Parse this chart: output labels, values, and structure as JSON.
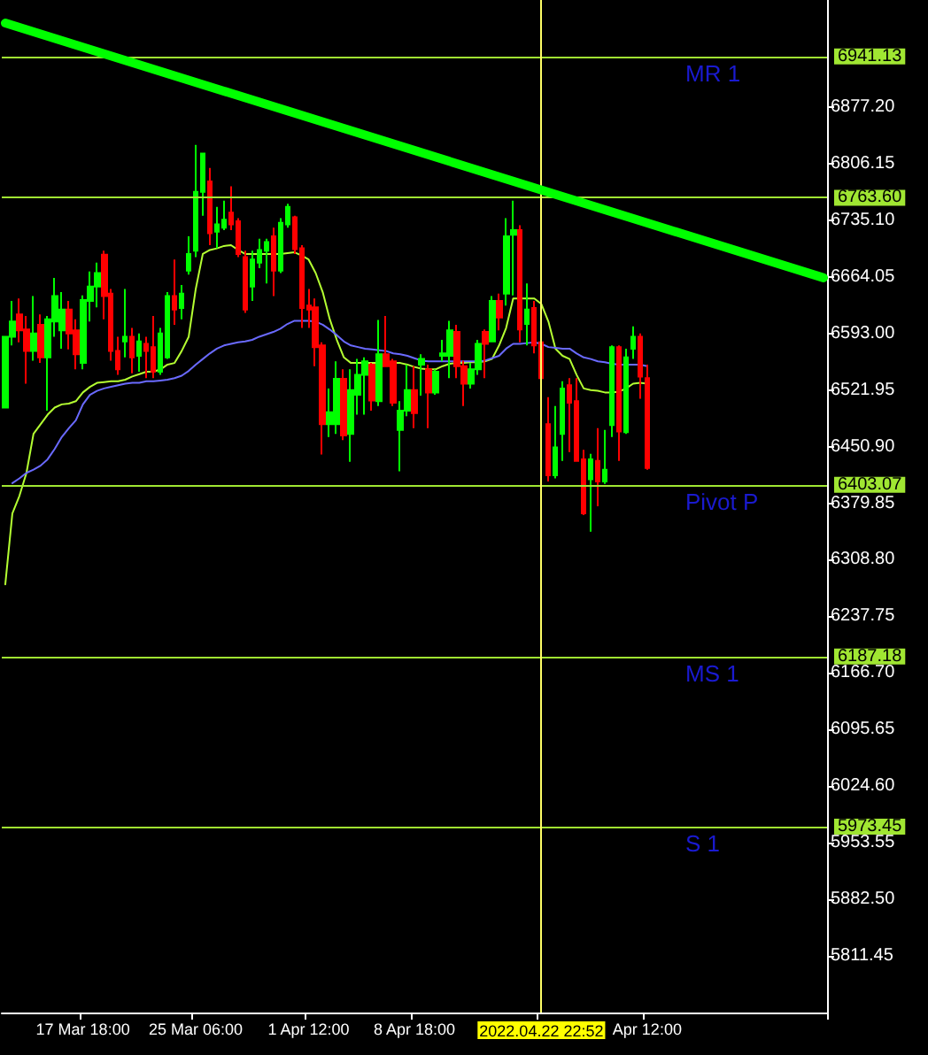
{
  "chart_data": {
    "type": "candlestick",
    "categories": [
      null,
      null,
      null,
      null,
      null,
      null,
      null,
      null,
      null,
      null,
      null,
      "17 Mar 18:00",
      null,
      null,
      null,
      null,
      null,
      null,
      null,
      null,
      null,
      null,
      null,
      null,
      null,
      null,
      null,
      "25 Mar 06:00",
      null,
      null,
      null,
      null,
      null,
      null,
      null,
      null,
      null,
      null,
      null,
      null,
      null,
      null,
      null,
      "1 Apr 12:00",
      null,
      null,
      null,
      null,
      null,
      null,
      null,
      null,
      null,
      null,
      null,
      null,
      null,
      null,
      "8 Apr 18:00",
      null,
      null,
      null,
      null,
      null,
      null,
      null,
      null,
      null,
      null,
      null,
      null,
      null,
      null,
      null,
      null,
      null,
      "2022.04.22 22:52",
      null,
      null,
      null,
      null,
      null,
      null,
      null,
      null,
      null,
      null,
      null,
      null,
      null,
      null,
      "Apr 12:00",
      null,
      null,
      null,
      null,
      null,
      null,
      null,
      null,
      null,
      null,
      null,
      null,
      null,
      null,
      null,
      null,
      null,
      null,
      null,
      null,
      null,
      null,
      null,
      null,
      null
    ],
    "ohlc": [
      [
        6500,
        6589,
        6500,
        6589
      ],
      [
        6589,
        6634,
        6578,
        6608
      ],
      [
        6617,
        6637,
        6582,
        6597
      ],
      [
        6598,
        6615,
        6530,
        6571
      ],
      [
        6571,
        6640,
        6559,
        6593
      ],
      [
        6604,
        6617,
        6556,
        6563
      ],
      [
        6563,
        6615,
        6496,
        6611
      ],
      [
        6608,
        6663,
        6589,
        6640
      ],
      [
        6597,
        6645,
        6574,
        6623
      ],
      [
        6623,
        6634,
        6573,
        6593
      ],
      [
        6597,
        6611,
        6548,
        6567
      ],
      [
        6556,
        6641,
        6548,
        6635
      ],
      [
        6634,
        6671,
        6608,
        6652
      ],
      [
        6652,
        6682,
        6626,
        6669
      ],
      [
        6692,
        6697,
        6611,
        6640
      ],
      [
        6643,
        6649,
        6559,
        6571
      ],
      [
        6571,
        6589,
        6541,
        6548
      ],
      [
        6583,
        6649,
        6563,
        6589
      ],
      [
        6589,
        6600,
        6543,
        6563
      ],
      [
        6565,
        6593,
        6545,
        6583
      ],
      [
        6580,
        6589,
        6537,
        6571
      ],
      [
        6576,
        6615,
        6537,
        6545
      ],
      [
        6545,
        6600,
        6541,
        6593
      ],
      [
        6563,
        6645,
        6561,
        6640
      ],
      [
        6640,
        6686,
        6604,
        6623
      ],
      [
        6625,
        6654,
        6611,
        6643
      ],
      [
        6672,
        6715,
        6667,
        6693
      ],
      [
        6697,
        6830,
        6689,
        6771
      ],
      [
        6771,
        6819,
        6741,
        6819
      ],
      [
        6784,
        6801,
        6704,
        6719
      ],
      [
        6721,
        6752,
        6700,
        6730
      ],
      [
        6726,
        6760,
        6723,
        6736
      ],
      [
        6745,
        6778,
        6723,
        6730
      ],
      [
        6734,
        6738,
        6689,
        6693
      ],
      [
        6689,
        6697,
        6619,
        6623
      ],
      [
        6652,
        6697,
        6634,
        6686
      ],
      [
        6682,
        6712,
        6675,
        6698
      ],
      [
        6697,
        6712,
        6656,
        6708
      ],
      [
        6715,
        6726,
        6640,
        6672
      ],
      [
        6672,
        6738,
        6669,
        6732
      ],
      [
        6730,
        6756,
        6726,
        6752
      ],
      [
        6739,
        6741,
        6693,
        6699
      ],
      [
        6700,
        6704,
        6600,
        6625
      ],
      [
        6628,
        6649,
        6600,
        6623
      ],
      [
        6626,
        6637,
        6552,
        6576
      ],
      [
        6578,
        6582,
        6441,
        6479
      ],
      [
        6479,
        6524,
        6463,
        6494
      ],
      [
        6479,
        6558,
        6467,
        6536
      ],
      [
        6536,
        6548,
        6459,
        6465
      ],
      [
        6467,
        6548,
        6432,
        6522
      ],
      [
        6516,
        6561,
        6491,
        6541
      ],
      [
        6541,
        6563,
        6491,
        6558
      ],
      [
        6554,
        6556,
        6496,
        6509
      ],
      [
        6508,
        6610,
        6502,
        6567
      ],
      [
        6567,
        6615,
        6552,
        6552
      ],
      [
        6558,
        6561,
        6502,
        6506
      ],
      [
        6472,
        6508,
        6420,
        6496
      ],
      [
        6496,
        6554,
        6489,
        6522
      ],
      [
        6522,
        6552,
        6474,
        6493
      ],
      [
        6554,
        6567,
        6515,
        6561
      ],
      [
        6548,
        6554,
        6474,
        6519
      ],
      [
        6519,
        6548,
        6516,
        6545
      ],
      [
        6565,
        6585,
        6558,
        6568
      ],
      [
        6565,
        6609,
        6537,
        6597
      ],
      [
        6595,
        6604,
        6537,
        6552
      ],
      [
        6552,
        6559,
        6502,
        6530
      ],
      [
        6530,
        6556,
        6524,
        6548
      ],
      [
        6548,
        6585,
        6541,
        6580
      ],
      [
        6595,
        6598,
        6537,
        6580
      ],
      [
        6583,
        6640,
        6582,
        6634
      ],
      [
        6634,
        6643,
        6597,
        6613
      ],
      [
        6643,
        6738,
        6628,
        6715
      ],
      [
        6717,
        6760,
        6641,
        6723
      ],
      [
        6723,
        6729,
        6582,
        6598
      ],
      [
        6605,
        6656,
        6578,
        6623
      ],
      [
        6625,
        6634,
        6568,
        6578
      ],
      [
        6582,
        6585,
        6537,
        6537
      ],
      [
        6479,
        6513,
        6407,
        6415
      ],
      [
        6415,
        6502,
        6411,
        6450
      ],
      [
        6467,
        6533,
        6433,
        6524
      ],
      [
        6528,
        6537,
        6444,
        6506
      ],
      [
        6508,
        6537,
        6433,
        6433
      ],
      [
        6435,
        6447,
        6365,
        6367
      ],
      [
        6410,
        6442,
        6344,
        6435
      ],
      [
        6433,
        6474,
        6376,
        6407
      ],
      [
        6407,
        6472,
        6404,
        6422
      ],
      [
        6478,
        6578,
        6463,
        6576
      ],
      [
        6576,
        6578,
        6433,
        6470
      ],
      [
        6469,
        6574,
        6467,
        6563
      ],
      [
        6574,
        6602,
        6561,
        6589
      ],
      [
        6589,
        6593,
        6511,
        6539
      ],
      [
        6537,
        6554,
        6422,
        6424
      ],
      null,
      null,
      null,
      null,
      null,
      null,
      null,
      null,
      null,
      null,
      null,
      null,
      null,
      null,
      null,
      null,
      null,
      null,
      null,
      null,
      null,
      null,
      null,
      null,
      null
    ],
    "colors": [
      "#00ff00",
      "#00ff00",
      "#ff0000",
      "#ff0000",
      "#00ff00",
      "#ff0000",
      "#00ff00",
      "#00ff00",
      "#00ff00",
      "#ff0000",
      "#ff0000",
      "#00ff00",
      "#00ff00",
      "#00ff00",
      "#ff0000",
      "#ff0000",
      "#ff0000",
      "#00ff00",
      "#ff0000",
      "#00ff00",
      "#ff0000",
      "#ff0000",
      "#00ff00",
      "#00ff00",
      "#ff0000",
      "#00ff00",
      "#00ff00",
      "#00ff00",
      "#00ff00",
      "#ff0000",
      "#00ff00",
      "#00ff00",
      "#ff0000",
      "#ff0000",
      "#ff0000",
      "#00ff00",
      "#00ff00",
      "#00ff00",
      "#ff0000",
      "#00ff00",
      "#00ff00",
      "#ff0000",
      "#ff0000",
      "#ff0000",
      "#ff0000",
      "#ff0000",
      "#00ff00",
      "#00ff00",
      "#ff0000",
      "#00ff00",
      "#00ff00",
      "#00ff00",
      "#ff0000",
      "#00ff00",
      "#ff0000",
      "#ff0000",
      "#00ff00",
      "#00ff00",
      "#ff0000",
      "#00ff00",
      "#ff0000",
      "#00ff00",
      "#00ff00",
      "#00ff00",
      "#ff0000",
      "#ff0000",
      "#00ff00",
      "#00ff00",
      "#ff0000",
      "#00ff00",
      "#ff0000",
      "#00ff00",
      "#00ff00",
      "#ff0000",
      "#00ff00",
      "#ff0000",
      "#ff0000",
      "#ff0000",
      "#00ff00",
      "#00ff00",
      "#ff0000",
      "#ff0000",
      "#ff0000",
      "#00ff00",
      "#ff0000",
      "#00ff00",
      "#00ff00",
      "#ff0000",
      "#00ff00",
      "#00ff00",
      "#ff0000",
      "#ff0000",
      null,
      null,
      null,
      null,
      null,
      null,
      null,
      null,
      null,
      null,
      null,
      null,
      null,
      null,
      null,
      null,
      null,
      null,
      null,
      null,
      null,
      null,
      null,
      null,
      null
    ],
    "series": [
      {
        "type": "line",
        "color": "#b4ff32",
        "values": [
          6278,
          6367,
          6389,
          6418,
          6467,
          6479,
          6491,
          6500,
          6504,
          6505,
          6508,
          6519,
          6526,
          6531,
          6532,
          6533,
          6533,
          6535,
          6539,
          6542,
          6545,
          6545,
          6548,
          6554,
          6556,
          6571,
          6589,
          6649,
          6693,
          6698,
          6700,
          6703,
          6704,
          6698,
          6693,
          6693,
          6693,
          6693,
          6693,
          6693,
          6694,
          6695,
          6691,
          6686,
          6669,
          6645,
          6611,
          6585,
          6563,
          6556,
          6556,
          6556,
          6556,
          6556,
          6556,
          6556,
          6556,
          6554,
          6551,
          6549,
          6548,
          6548,
          6552,
          6555,
          6556,
          6556,
          6557,
          6557,
          6558,
          6561,
          6578,
          6600,
          6637,
          6637,
          6637,
          6637,
          6630,
          6608,
          6574,
          6565,
          6561,
          6541,
          6524,
          6522,
          6521,
          6519,
          6519,
          6520,
          6524,
          6530,
          6531,
          6530,
          null,
          null,
          null,
          null,
          null,
          null,
          null,
          null,
          null,
          null,
          null,
          null,
          null,
          null,
          null,
          null,
          null,
          null,
          null,
          null,
          null,
          null,
          null,
          null,
          null
        ]
      },
      {
        "type": "line",
        "color": "#6a6aff",
        "values": [
          null,
          6405,
          6411,
          6418,
          6422,
          6427,
          6435,
          6448,
          6463,
          6474,
          6484,
          6504,
          6516,
          6521,
          6524,
          6526,
          6528,
          6530,
          6531,
          6531,
          6533,
          6533,
          6534,
          6535,
          6537,
          6540,
          6546,
          6554,
          6561,
          6568,
          6574,
          6578,
          6580,
          6582,
          6583,
          6585,
          6589,
          6592,
          6595,
          6599,
          6605,
          6609,
          6609,
          6609,
          6608,
          6604,
          6598,
          6591,
          6583,
          6578,
          6576,
          6574,
          6573,
          6572,
          6571,
          6568,
          6567,
          6565,
          6562,
          6559,
          6558,
          6558,
          6558,
          6558,
          6558,
          6558,
          6558,
          6558,
          6559,
          6562,
          6565,
          6574,
          6580,
          6580,
          6581,
          6582,
          6580,
          6576,
          6575,
          6574,
          6574,
          6568,
          6563,
          6561,
          6558,
          6557,
          6555,
          6554,
          6554,
          6554,
          6554,
          6552,
          null,
          null,
          null,
          null,
          null,
          null,
          null,
          null,
          null,
          null,
          null,
          null,
          null,
          null,
          null,
          null,
          null,
          null,
          null,
          null,
          null,
          null,
          null,
          null,
          null
        ]
      },
      {
        "type": "line",
        "color": "#00ff00",
        "values": [
          6983,
          null,
          null,
          null,
          null,
          null,
          null,
          null,
          null,
          null,
          null,
          null,
          null,
          null,
          null,
          null,
          null,
          null,
          null,
          null,
          null,
          null,
          null,
          null,
          null,
          null,
          null,
          null,
          null,
          null,
          null,
          null,
          null,
          null,
          null,
          null,
          null,
          null,
          null,
          null,
          null,
          null,
          null,
          null,
          null,
          null,
          null,
          null,
          null,
          null,
          null,
          null,
          null,
          null,
          null,
          null,
          null,
          null,
          null,
          null,
          null,
          null,
          null,
          null,
          null,
          null,
          null,
          null,
          null,
          null,
          null,
          null,
          null,
          null,
          null,
          null,
          null,
          null,
          null,
          null,
          null,
          null,
          null,
          null,
          null,
          null,
          null,
          null,
          null,
          null,
          null,
          null,
          null,
          null,
          null,
          null,
          null,
          null,
          null,
          null,
          null,
          null,
          null,
          null,
          null,
          null,
          null,
          null,
          null,
          null,
          null,
          null,
          null,
          null,
          null,
          null,
          6663
        ]
      }
    ],
    "ylim": [
      5740,
      7012
    ],
    "yticks": [
      {
        "value": 5811.45,
        "label": "5811.45"
      },
      {
        "value": 5882.5,
        "label": "5882.50"
      },
      {
        "value": 5953.55,
        "label": "5953.55"
      },
      {
        "value": 6024.6,
        "label": "6024.60"
      },
      {
        "value": 6095.65,
        "label": "6095.65"
      },
      {
        "value": 6166.7,
        "label": "6166.70"
      },
      {
        "value": 6237.75,
        "label": "6237.75"
      },
      {
        "value": 6308.8,
        "label": "6308.80"
      },
      {
        "value": 6379.85,
        "label": "6379.85"
      },
      {
        "value": 6450.9,
        "label": "6450.90"
      },
      {
        "value": 6521.95,
        "label": "6521.95"
      },
      {
        "value": 6593,
        "label": "6593.00"
      },
      {
        "value": 6664.05,
        "label": "6664.05"
      },
      {
        "value": 6735.1,
        "label": "6735.10"
      },
      {
        "value": 6806.15,
        "label": "6806.15"
      },
      {
        "value": 6877.2,
        "label": "6877.20"
      }
    ],
    "ref_lines": [
      {
        "axis": "y",
        "value": 6941.13,
        "label": "6941.13",
        "color": "#a0e632"
      },
      {
        "axis": "y",
        "value": 6763.6,
        "label": "6763.60",
        "color": "#a0e632"
      },
      {
        "axis": "y",
        "value": 6403.07,
        "label": "6403.07",
        "color": "#a0e632"
      },
      {
        "axis": "y",
        "value": 6187.18,
        "label": "6187.18",
        "color": "#a0e632"
      },
      {
        "axis": "y",
        "value": 5973.45,
        "label": "5973.45",
        "color": "#a0e632"
      },
      {
        "axis": "x",
        "value": "2022.04.22 22:52",
        "color": "#ffff66"
      }
    ],
    "annotations": [
      {
        "text": "MR 1",
        "y": 6941.13
      },
      {
        "text": "Pivot P",
        "y": 6403.07
      },
      {
        "text": "MS 1",
        "y": 6187.18
      },
      {
        "text": "S 1",
        "y": 5973.45
      }
    ],
    "grid": false,
    "marker": "none"
  }
}
